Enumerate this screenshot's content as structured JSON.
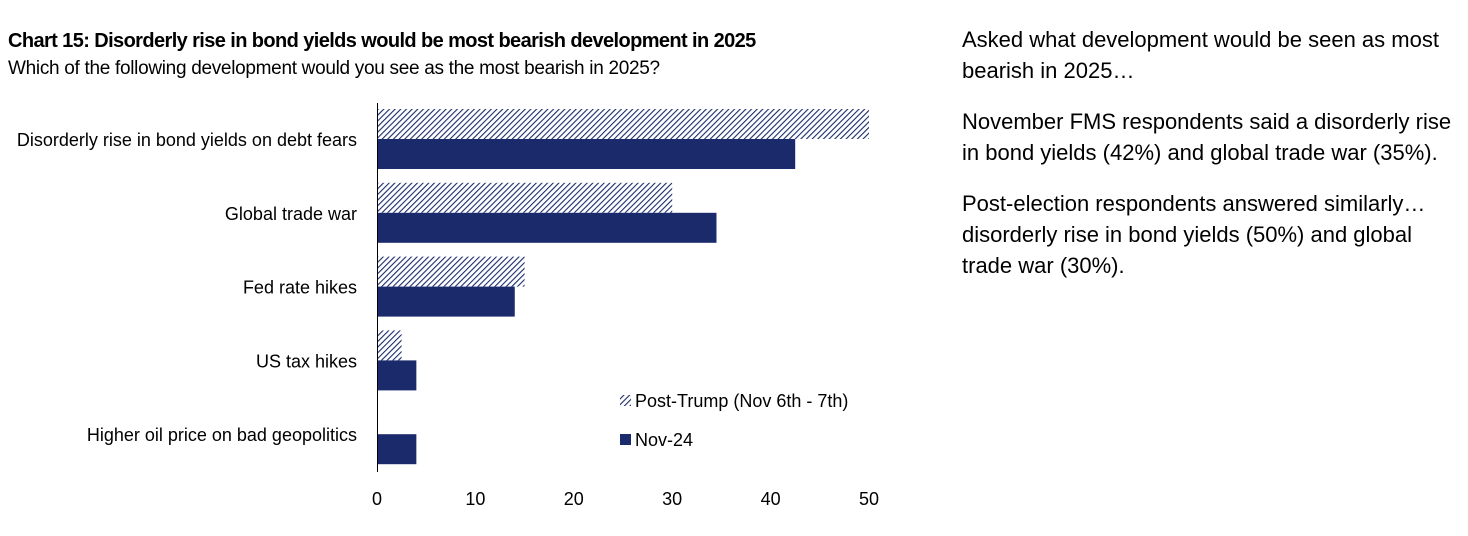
{
  "chart_data": {
    "type": "bar",
    "orientation": "horizontal",
    "title": "Chart 15: Disorderly rise in bond yields would be most bearish development in 2025",
    "subtitle": "Which of the following development would you see as the most bearish in 2025?",
    "categories": [
      "Disorderly rise in bond yields on debt fears",
      "Global trade war",
      "Fed rate hikes",
      "US tax hikes",
      "Higher oil price on bad geopolitics"
    ],
    "series": [
      {
        "name": "Post-Trump (Nov 6th - 7th)",
        "values": [
          50,
          30,
          15,
          2.5,
          0
        ],
        "color": "#1b2a6b",
        "pattern": "hatched"
      },
      {
        "name": "Nov-24",
        "values": [
          42.5,
          34.5,
          14,
          4,
          4
        ],
        "color": "#1b2a6b",
        "pattern": "solid"
      }
    ],
    "xlim": [
      0,
      50
    ],
    "xticks": [
      "0",
      "10",
      "20",
      "30",
      "40",
      "50"
    ],
    "grid": false,
    "legend_position": "bottom-right"
  },
  "commentary": {
    "p1": "Asked what development would be seen as most bearish in 2025…",
    "p2": "November FMS respondents said a disorderly rise in bond yields (42%) and global trade war (35%).",
    "p3": "Post-election respondents answered similarly…disorderly rise in bond yields (50%) and global trade war (30%)."
  }
}
